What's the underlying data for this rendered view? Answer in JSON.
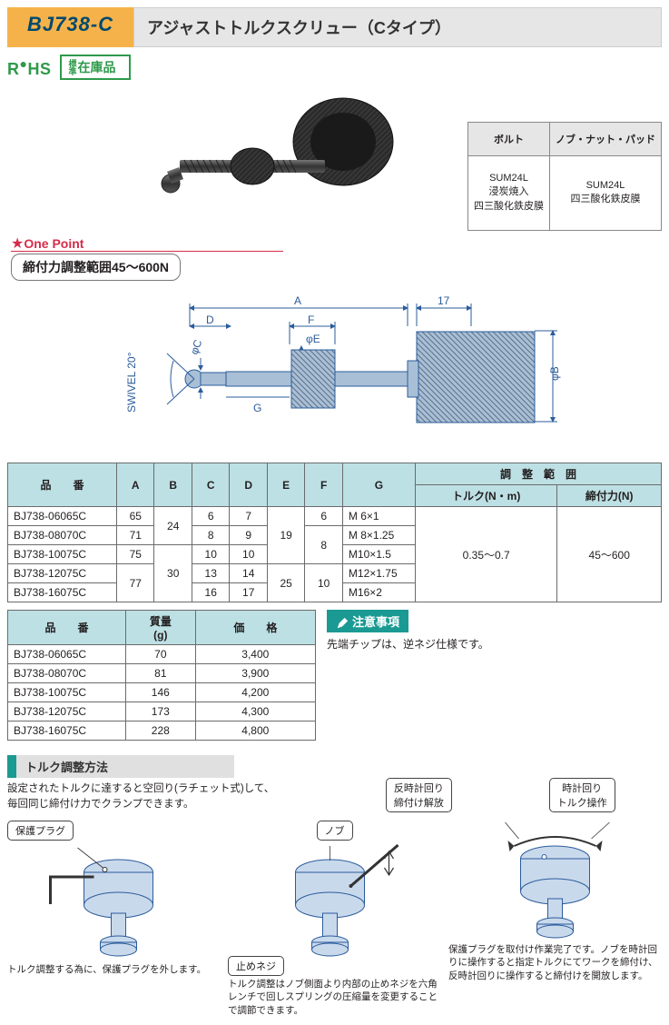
{
  "header": {
    "code": "BJ738-C",
    "title": "アジャストトルクスクリュー（Cタイプ）"
  },
  "badges": {
    "rohs": "RoHS",
    "stock_side": "標準",
    "stock_main": "在庫品"
  },
  "one_point": {
    "star": "★",
    "label": "One Point",
    "text": "締付力調整範囲45～600N"
  },
  "material_table": {
    "headers": [
      "ボルト",
      "ノブ・ナット・パッド"
    ],
    "row": [
      "SUM24L\n浸炭焼入\n四三酸化鉄皮膜",
      "SUM24L\n四三酸化鉄皮膜"
    ]
  },
  "diagram_labels": {
    "A": "A",
    "D": "D",
    "F": "F",
    "phiE": "φE",
    "phiC": "φC",
    "phiB": "φB",
    "G": "G",
    "sev17": "17",
    "swivel": "SWIVEL 20°"
  },
  "spec_table": {
    "headers": [
      "品　　番",
      "A",
      "B",
      "C",
      "D",
      "E",
      "F",
      "G",
      "調　整　範　囲"
    ],
    "sub_headers": [
      "トルク(N・m)",
      "締付力(N)"
    ],
    "rows": [
      {
        "pn": "BJ738-06065C",
        "A": "65",
        "B": "24",
        "C": "6",
        "D": "7",
        "E": "19",
        "F": "6",
        "G": "M  6×1",
        "t": "0.35～0.7",
        "n": "45～600"
      },
      {
        "pn": "BJ738-08070C",
        "A": "71",
        "B": "24",
        "C": "8",
        "D": "9",
        "E": "19",
        "F": "8",
        "G": "M  8×1.25",
        "t": "0.35～0.7",
        "n": "45～600"
      },
      {
        "pn": "BJ738-10075C",
        "A": "75",
        "B": "30",
        "C": "10",
        "D": "10",
        "E": "19",
        "F": "8",
        "G": "M10×1.5",
        "t": "0.35～0.7",
        "n": "45～600"
      },
      {
        "pn": "BJ738-12075C",
        "A": "77",
        "B": "30",
        "C": "13",
        "D": "14",
        "E": "25",
        "F": "10",
        "G": "M12×1.75",
        "t": "0.35～0.7",
        "n": "45～600"
      },
      {
        "pn": "BJ738-16075C",
        "A": "77",
        "B": "30",
        "C": "16",
        "D": "17",
        "E": "25",
        "F": "10",
        "G": "M16×2",
        "t": "0.35～0.7",
        "n": "45～600"
      }
    ]
  },
  "price_table": {
    "headers": [
      "品　　番",
      "質量\n(g)",
      "価　　格"
    ],
    "rows": [
      {
        "pn": "BJ738-06065C",
        "mass": "70",
        "price": "3,400"
      },
      {
        "pn": "BJ738-08070C",
        "mass": "81",
        "price": "3,900"
      },
      {
        "pn": "BJ738-10075C",
        "mass": "146",
        "price": "4,200"
      },
      {
        "pn": "BJ738-12075C",
        "mass": "173",
        "price": "4,300"
      },
      {
        "pn": "BJ738-16075C",
        "mass": "228",
        "price": "4,800"
      }
    ]
  },
  "notes": {
    "title": "注意事項",
    "body": "先端チップは、逆ネジ仕様です。"
  },
  "torque": {
    "title": "トルク調整方法",
    "desc": "設定されたトルクに達すると空回り(ラチェット式)して、\n毎回同じ締付け力でクランプできます。",
    "fig1": {
      "callout": "保護プラグ",
      "cap": "トルク調整する為に、保護プラグを外します。"
    },
    "fig2": {
      "callout1": "ノブ",
      "callout2": "止めネジ",
      "cap": "トルク調整はノブ側面より内部の止めネジを六角レンチで回しスプリングの圧縮量を変更することで調節できます。"
    },
    "fig3": {
      "callout1": "反時計回り\n締付け解放",
      "callout2": "時計回り\nトルク操作",
      "cap": "保護プラグを取付け作業完了です。ノブを時計回りに操作すると指定トルクにてワークを締付け、反時計回りに操作すると締付けを開放します。"
    }
  },
  "colors": {
    "orange": "#f6b24a",
    "navy": "#004a6e",
    "grey_bg": "#e6e6e6",
    "teal": "#1a9a93",
    "tbl_head": "#bde0e4",
    "green": "#2e9a4a",
    "red": "#d62c4a",
    "dim_blue": "#2b5c9b",
    "steel": "#a9bfd6",
    "steel_dark": "#7d93a9",
    "knurl": "#5d7188"
  }
}
